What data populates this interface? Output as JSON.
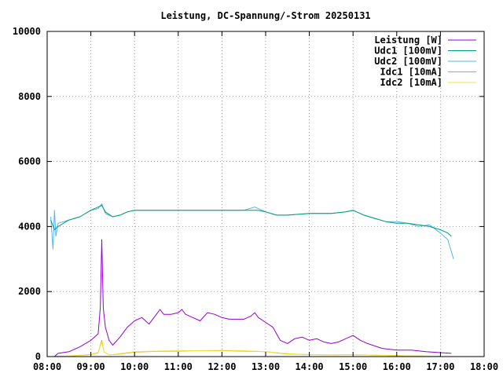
{
  "chart_data": {
    "type": "line",
    "title": "Leistung, DC-Spannung/-Strom 20250131",
    "xlabel": "",
    "ylabel": "",
    "x_ticks": [
      "08:00",
      "09:00",
      "10:00",
      "11:00",
      "12:00",
      "13:00",
      "14:00",
      "15:00",
      "16:00",
      "17:00",
      "18:00"
    ],
    "y_ticks": [
      "0",
      "2000",
      "4000",
      "6000",
      "8000",
      "10000"
    ],
    "xlim": [
      "08:00",
      "18:00"
    ],
    "ylim": [
      0,
      10000
    ],
    "grid": true,
    "legend_position": "top-right",
    "series": [
      {
        "name": "Leistung [W]",
        "color": "#9400d3",
        "points": [
          [
            "08:10",
            0
          ],
          [
            "08:15",
            100
          ],
          [
            "08:30",
            150
          ],
          [
            "08:45",
            300
          ],
          [
            "09:00",
            500
          ],
          [
            "09:05",
            600
          ],
          [
            "09:10",
            700
          ],
          [
            "09:13",
            1500
          ],
          [
            "09:15",
            3600
          ],
          [
            "09:17",
            1500
          ],
          [
            "09:20",
            900
          ],
          [
            "09:25",
            500
          ],
          [
            "09:30",
            350
          ],
          [
            "09:40",
            600
          ],
          [
            "09:50",
            900
          ],
          [
            "10:00",
            1100
          ],
          [
            "10:10",
            1200
          ],
          [
            "10:20",
            1000
          ],
          [
            "10:30",
            1300
          ],
          [
            "10:35",
            1450
          ],
          [
            "10:40",
            1300
          ],
          [
            "10:50",
            1300
          ],
          [
            "11:00",
            1350
          ],
          [
            "11:05",
            1450
          ],
          [
            "11:10",
            1300
          ],
          [
            "11:20",
            1200
          ],
          [
            "11:30",
            1100
          ],
          [
            "11:40",
            1350
          ],
          [
            "11:50",
            1300
          ],
          [
            "12:00",
            1200
          ],
          [
            "12:10",
            1150
          ],
          [
            "12:20",
            1150
          ],
          [
            "12:30",
            1150
          ],
          [
            "12:40",
            1250
          ],
          [
            "12:45",
            1350
          ],
          [
            "12:50",
            1200
          ],
          [
            "13:00",
            1050
          ],
          [
            "13:10",
            900
          ],
          [
            "13:20",
            500
          ],
          [
            "13:30",
            400
          ],
          [
            "13:40",
            550
          ],
          [
            "13:50",
            600
          ],
          [
            "14:00",
            500
          ],
          [
            "14:10",
            550
          ],
          [
            "14:20",
            450
          ],
          [
            "14:30",
            400
          ],
          [
            "14:40",
            450
          ],
          [
            "14:50",
            550
          ],
          [
            "15:00",
            650
          ],
          [
            "15:10",
            500
          ],
          [
            "15:20",
            400
          ],
          [
            "15:40",
            250
          ],
          [
            "16:00",
            200
          ],
          [
            "16:20",
            200
          ],
          [
            "16:40",
            150
          ],
          [
            "17:00",
            120
          ],
          [
            "17:15",
            100
          ]
        ]
      },
      {
        "name": "Udc1 [100mV]",
        "color": "#009e73",
        "points": [
          [
            "08:05",
            4200
          ],
          [
            "08:10",
            3900
          ],
          [
            "08:15",
            4000
          ],
          [
            "08:30",
            4200
          ],
          [
            "08:45",
            4300
          ],
          [
            "09:00",
            4500
          ],
          [
            "09:10",
            4600
          ],
          [
            "09:15",
            4650
          ],
          [
            "09:20",
            4450
          ],
          [
            "09:30",
            4300
          ],
          [
            "09:40",
            4350
          ],
          [
            "09:50",
            4450
          ],
          [
            "10:00",
            4500
          ],
          [
            "10:30",
            4500
          ],
          [
            "11:00",
            4500
          ],
          [
            "11:30",
            4500
          ],
          [
            "12:00",
            4500
          ],
          [
            "12:30",
            4500
          ],
          [
            "12:50",
            4500
          ],
          [
            "13:00",
            4450
          ],
          [
            "13:15",
            4350
          ],
          [
            "13:30",
            4350
          ],
          [
            "14:00",
            4400
          ],
          [
            "14:30",
            4400
          ],
          [
            "14:50",
            4450
          ],
          [
            "15:00",
            4500
          ],
          [
            "15:15",
            4350
          ],
          [
            "15:30",
            4250
          ],
          [
            "15:45",
            4150
          ],
          [
            "16:00",
            4100
          ],
          [
            "16:15",
            4100
          ],
          [
            "16:30",
            4050
          ],
          [
            "16:45",
            4000
          ],
          [
            "17:00",
            3900
          ],
          [
            "17:10",
            3800
          ],
          [
            "17:15",
            3700
          ]
        ]
      },
      {
        "name": "Udc2 [100mV]",
        "color": "#56b4e9",
        "points": [
          [
            "08:05",
            4300
          ],
          [
            "08:08",
            3300
          ],
          [
            "08:10",
            4500
          ],
          [
            "08:12",
            3700
          ],
          [
            "08:15",
            4100
          ],
          [
            "08:30",
            4200
          ],
          [
            "08:45",
            4300
          ],
          [
            "09:00",
            4500
          ],
          [
            "09:10",
            4550
          ],
          [
            "09:15",
            4700
          ],
          [
            "09:20",
            4400
          ],
          [
            "09:30",
            4300
          ],
          [
            "09:40",
            4350
          ],
          [
            "09:50",
            4450
          ],
          [
            "10:00",
            4500
          ],
          [
            "10:30",
            4500
          ],
          [
            "11:00",
            4500
          ],
          [
            "11:30",
            4500
          ],
          [
            "12:00",
            4500
          ],
          [
            "12:30",
            4500
          ],
          [
            "12:45",
            4600
          ],
          [
            "13:00",
            4450
          ],
          [
            "13:15",
            4350
          ],
          [
            "13:30",
            4350
          ],
          [
            "14:00",
            4400
          ],
          [
            "14:30",
            4400
          ],
          [
            "14:50",
            4450
          ],
          [
            "15:00",
            4500
          ],
          [
            "15:15",
            4350
          ],
          [
            "15:30",
            4250
          ],
          [
            "15:45",
            4150
          ],
          [
            "16:00",
            4150
          ],
          [
            "16:15",
            4100
          ],
          [
            "16:30",
            4000
          ],
          [
            "16:45",
            4050
          ],
          [
            "17:00",
            3800
          ],
          [
            "17:10",
            3600
          ],
          [
            "17:18",
            3000
          ]
        ]
      },
      {
        "name": "Idc1 [10mA]",
        "color": "#e69f00",
        "points": [
          [
            "08:10",
            0
          ],
          [
            "08:30",
            20
          ],
          [
            "09:00",
            60
          ],
          [
            "09:10",
            120
          ],
          [
            "09:15",
            500
          ],
          [
            "09:18",
            150
          ],
          [
            "09:25",
            50
          ],
          [
            "09:40",
            80
          ],
          [
            "10:00",
            140
          ],
          [
            "10:30",
            160
          ],
          [
            "11:00",
            170
          ],
          [
            "11:30",
            180
          ],
          [
            "12:00",
            180
          ],
          [
            "12:30",
            170
          ],
          [
            "13:00",
            150
          ],
          [
            "13:30",
            80
          ],
          [
            "14:00",
            60
          ],
          [
            "14:30",
            50
          ],
          [
            "15:00",
            60
          ],
          [
            "15:30",
            40
          ],
          [
            "16:00",
            30
          ],
          [
            "16:30",
            20
          ],
          [
            "17:00",
            10
          ]
        ]
      },
      {
        "name": "Idc2 [10mA]",
        "color": "#f0e442",
        "points": [
          [
            "08:10",
            0
          ],
          [
            "08:30",
            20
          ],
          [
            "09:00",
            70
          ],
          [
            "09:10",
            130
          ],
          [
            "09:15",
            450
          ],
          [
            "09:18",
            150
          ],
          [
            "09:25",
            50
          ],
          [
            "09:40",
            90
          ],
          [
            "10:00",
            150
          ],
          [
            "10:30",
            170
          ],
          [
            "11:00",
            180
          ],
          [
            "11:30",
            180
          ],
          [
            "12:00",
            190
          ],
          [
            "12:30",
            180
          ],
          [
            "13:00",
            150
          ],
          [
            "13:30",
            90
          ],
          [
            "14:00",
            60
          ],
          [
            "14:30",
            50
          ],
          [
            "15:00",
            60
          ],
          [
            "15:30",
            40
          ],
          [
            "16:00",
            30
          ],
          [
            "16:30",
            20
          ],
          [
            "17:00",
            10
          ]
        ]
      }
    ]
  }
}
